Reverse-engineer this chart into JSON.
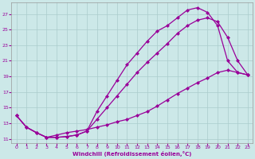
{
  "xlabel": "Windchill (Refroidissement éolien,°C)",
  "bg_color": "#cce8e8",
  "grid_color": "#aacccc",
  "line_color": "#990099",
  "xlim": [
    -0.5,
    23.5
  ],
  "ylim": [
    10.5,
    28.5
  ],
  "xticks": [
    0,
    1,
    2,
    3,
    4,
    5,
    6,
    7,
    8,
    9,
    10,
    11,
    12,
    13,
    14,
    15,
    16,
    17,
    18,
    19,
    20,
    21,
    22,
    23
  ],
  "yticks": [
    11,
    13,
    15,
    17,
    19,
    21,
    23,
    25,
    27
  ],
  "line1_x": [
    0,
    1,
    2,
    3,
    4,
    5,
    6,
    7,
    8,
    9,
    10,
    11,
    12,
    13,
    14,
    15,
    16,
    17,
    18,
    19,
    20,
    21,
    22,
    23
  ],
  "line1_y": [
    14.0,
    12.5,
    11.8,
    11.2,
    11.2,
    11.3,
    11.5,
    12.0,
    14.5,
    16.5,
    18.5,
    20.5,
    22.0,
    23.5,
    24.8,
    25.5,
    26.5,
    27.5,
    27.8,
    27.2,
    25.5,
    21.0,
    19.5,
    19.2
  ],
  "line2_x": [
    0,
    1,
    2,
    3,
    4,
    5,
    6,
    7,
    8,
    9,
    10,
    11,
    12,
    13,
    14,
    15,
    16,
    17,
    18,
    19,
    20,
    21,
    22,
    23
  ],
  "line2_y": [
    14.0,
    12.5,
    11.8,
    11.2,
    11.2,
    11.3,
    11.5,
    12.0,
    13.5,
    15.0,
    16.5,
    18.0,
    19.5,
    20.8,
    22.0,
    23.2,
    24.5,
    25.5,
    26.2,
    26.5,
    26.0,
    24.0,
    21.0,
    19.2
  ],
  "line3_x": [
    0,
    1,
    2,
    3,
    4,
    5,
    6,
    7,
    8,
    9,
    10,
    11,
    12,
    13,
    14,
    15,
    16,
    17,
    18,
    19,
    20,
    21,
    22,
    23
  ],
  "line3_y": [
    14.0,
    12.5,
    11.8,
    11.2,
    11.5,
    11.8,
    12.0,
    12.2,
    12.5,
    12.8,
    13.2,
    13.5,
    14.0,
    14.5,
    15.2,
    16.0,
    16.8,
    17.5,
    18.2,
    18.8,
    19.5,
    19.8,
    19.5,
    19.2
  ]
}
